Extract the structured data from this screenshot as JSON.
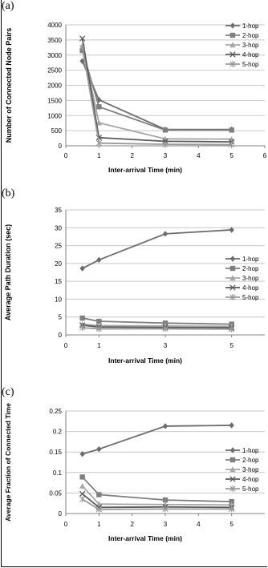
{
  "panels": [
    {
      "label": "(a)"
    },
    {
      "label": "(b)"
    },
    {
      "label": "(c)"
    }
  ],
  "colors": {
    "1-hop": "#6d6d6d",
    "2-hop": "#7f7f7f",
    "3-hop": "#a6a6a6",
    "4-hop": "#5a5a5a",
    "5-hop": "#9a9a9a",
    "grid": "#c8c8c8",
    "axis": "#808080"
  },
  "chart_data": [
    {
      "type": "line",
      "title": "",
      "xlabel": "Inter-arrival Time (min)",
      "ylabel": "Number of Connected Node Pairs",
      "xlim": [
        0,
        6
      ],
      "ylim": [
        0,
        4000
      ],
      "xticks": [
        0,
        1,
        2,
        3,
        4,
        5,
        6
      ],
      "yticks": [
        0,
        500,
        1000,
        1500,
        2000,
        2500,
        3000,
        3500,
        4000
      ],
      "grid": true,
      "legend": "right",
      "x": [
        0.5,
        1,
        3,
        5
      ],
      "series": [
        {
          "name": "1-hop",
          "marker": "diamond",
          "values": [
            2800,
            1520,
            540,
            540
          ]
        },
        {
          "name": "2-hop",
          "marker": "square",
          "values": [
            3150,
            1290,
            520,
            520
          ]
        },
        {
          "name": "3-hop",
          "marker": "triangle",
          "values": [
            3300,
            760,
            230,
            220
          ]
        },
        {
          "name": "4-hop",
          "marker": "x",
          "values": [
            3550,
            270,
            150,
            130
          ]
        },
        {
          "name": "5-hop",
          "marker": "star",
          "values": [
            3250,
            90,
            50,
            40
          ]
        }
      ]
    },
    {
      "type": "line",
      "title": "",
      "xlabel": "Inter-arrival Time (min)",
      "ylabel": "Average Path Duration (sec)",
      "xlim": [
        0,
        6
      ],
      "ylim": [
        0,
        35
      ],
      "xticks": [
        0,
        1,
        3,
        5
      ],
      "yticks": [
        0,
        5,
        10,
        15,
        20,
        25,
        30,
        35
      ],
      "grid": true,
      "legend": "right",
      "x": [
        0.5,
        1,
        3,
        5
      ],
      "series": [
        {
          "name": "1-hop",
          "marker": "diamond",
          "values": [
            18.6,
            21.0,
            28.3,
            29.4
          ]
        },
        {
          "name": "2-hop",
          "marker": "square",
          "values": [
            4.7,
            3.8,
            3.3,
            3.0
          ]
        },
        {
          "name": "3-hop",
          "marker": "triangle",
          "values": [
            3.0,
            2.6,
            2.5,
            2.4
          ]
        },
        {
          "name": "4-hop",
          "marker": "x",
          "values": [
            2.7,
            2.2,
            2.1,
            2.0
          ]
        },
        {
          "name": "5-hop",
          "marker": "star",
          "values": [
            2.0,
            1.7,
            1.7,
            1.6
          ]
        }
      ]
    },
    {
      "type": "line",
      "title": "",
      "xlabel": "Inter-arrival Time (min)",
      "ylabel": "Average Fraction of Connected Time",
      "xlim": [
        0,
        6
      ],
      "ylim": [
        0,
        0.25
      ],
      "xticks": [
        0,
        1,
        2,
        3,
        4,
        5
      ],
      "yticks": [
        0,
        0.05,
        0.1,
        0.15,
        0.2,
        0.25
      ],
      "grid": true,
      "legend": "right",
      "x": [
        0.5,
        1,
        3,
        5
      ],
      "series": [
        {
          "name": "1-hop",
          "marker": "diamond",
          "values": [
            0.145,
            0.157,
            0.213,
            0.215
          ]
        },
        {
          "name": "2-hop",
          "marker": "square",
          "values": [
            0.089,
            0.046,
            0.033,
            0.029
          ]
        },
        {
          "name": "3-hop",
          "marker": "triangle",
          "values": [
            0.067,
            0.023,
            0.022,
            0.021
          ]
        },
        {
          "name": "4-hop",
          "marker": "x",
          "values": [
            0.048,
            0.015,
            0.016,
            0.015
          ]
        },
        {
          "name": "5-hop",
          "marker": "star",
          "values": [
            0.035,
            0.01,
            0.011,
            0.011
          ]
        }
      ]
    }
  ]
}
